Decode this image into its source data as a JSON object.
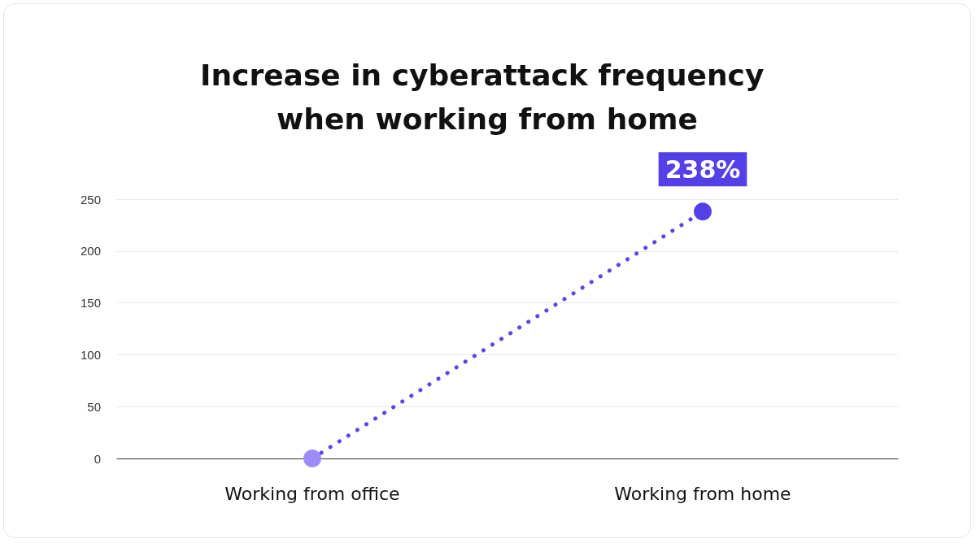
{
  "chart_data": {
    "type": "line",
    "title": "Increase in cyberattack frequency when working from home",
    "categories": [
      "Working from office",
      "Working from home"
    ],
    "series": [
      {
        "color": "#5a45e6",
        "colors": [
          "#9d8cf7",
          "#5440e6"
        ],
        "values": [
          0,
          238
        ],
        "value_labels": [
          null,
          "238%"
        ]
      }
    ],
    "ylim": [
      0,
      250
    ],
    "yticks": [
      0,
      50,
      100,
      150,
      200,
      250
    ],
    "grid": "y",
    "marker": "circle",
    "line_style": "dotted"
  }
}
